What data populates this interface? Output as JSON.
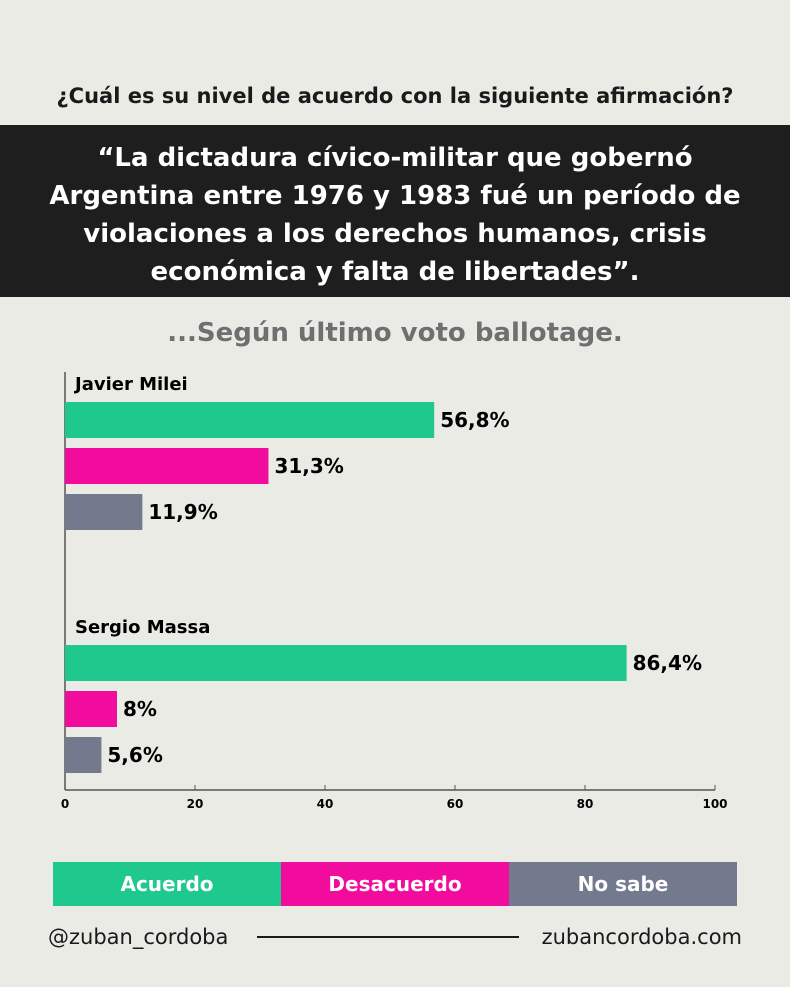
{
  "question": "¿Cuál es su nivel de acuerdo con la siguiente afirmación?",
  "statement": "“La dictadura cívico-militar que gobernó Argentina entre 1976 y 1983 fué un período de violaciones a los derechos humanos, crisis económica y falta de libertades”.",
  "chart_data": {
    "type": "bar",
    "title": "...Según último voto ballotage.",
    "groups": [
      "Javier Milei",
      "Sergio Massa"
    ],
    "series": [
      {
        "name": "Acuerdo",
        "color": "#1fc98e",
        "values": [
          56.8,
          86.4
        ],
        "labels": [
          "56,8%",
          "86,4%"
        ]
      },
      {
        "name": "Desacuerdo",
        "color": "#f20c9e",
        "values": [
          31.3,
          8
        ],
        "labels": [
          "31,3%",
          "8%"
        ]
      },
      {
        "name": "No sabe",
        "color": "#737a8e",
        "values": [
          11.9,
          5.6
        ],
        "labels": [
          "11,9%",
          "5,6%"
        ]
      }
    ],
    "xlim": [
      0,
      100
    ],
    "xticks": [
      "0",
      "20",
      "40",
      "60",
      "80",
      "100"
    ],
    "legend_position": "bottom"
  },
  "footer": {
    "handle": "@zuban_cordoba",
    "website": "zubancordoba.com"
  }
}
